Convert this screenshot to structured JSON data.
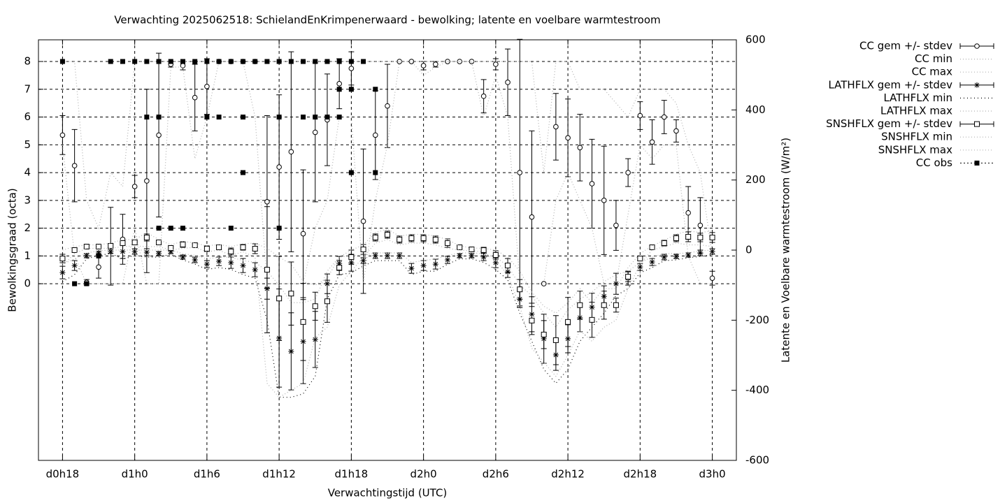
{
  "chart_data": {
    "type": "errorbar",
    "title": "Verwachting 2025062518: SchielandEnKrimpenerwaard - bewolking; latente en voelbare warmtestroom",
    "xlabel": "Verwachtingstijd (UTC)",
    "ylabel": "Bewolkingsgraad (octa)",
    "y2label": "Latente en Voelbare warmtestroom (W/m²)",
    "grid": true,
    "legend": "right",
    "xlim": [
      16,
      74
    ],
    "xticks": [
      {
        "value": 18,
        "label": "d0h18"
      },
      {
        "value": 24,
        "label": "d1h0"
      },
      {
        "value": 30,
        "label": "d1h6"
      },
      {
        "value": 36,
        "label": "d1h12"
      },
      {
        "value": 42,
        "label": "d1h18"
      },
      {
        "value": 48,
        "label": "d2h0"
      },
      {
        "value": 54,
        "label": "d2h6"
      },
      {
        "value": 60,
        "label": "d2h12"
      },
      {
        "value": 66,
        "label": "d2h18"
      },
      {
        "value": 72,
        "label": "d3h0"
      }
    ],
    "ylim": [
      -6.36,
      8.78
    ],
    "yticks": [
      0,
      1,
      2,
      3,
      4,
      5,
      6,
      7,
      8
    ],
    "y2lim": [
      -600,
      600
    ],
    "y2ticks": [
      -600,
      -400,
      -200,
      0,
      200,
      400,
      600
    ],
    "x": [
      18,
      19,
      20,
      21,
      22,
      23,
      24,
      25,
      26,
      27,
      28,
      29,
      30,
      31,
      32,
      33,
      34,
      35,
      36,
      37,
      38,
      39,
      40,
      41,
      42,
      43,
      44,
      45,
      46,
      47,
      48,
      49,
      50,
      51,
      52,
      53,
      54,
      55,
      56,
      57,
      58,
      59,
      60,
      61,
      62,
      63,
      64,
      65,
      66,
      67,
      68,
      69,
      70,
      71,
      72
    ],
    "series": [
      {
        "name": "CC gem +/- stdev",
        "kind": "errorbar",
        "marker": "circle",
        "color": "#000000",
        "axis": "y",
        "values": [
          5.35,
          4.25,
          0.05,
          0.6,
          1.35,
          1.6,
          3.5,
          3.7,
          5.35,
          7.9,
          7.85,
          6.7,
          7.1,
          8,
          8,
          8,
          8,
          2.95,
          4.2,
          4.75,
          1.8,
          5.45,
          5.9,
          7.2,
          7.75,
          2.25,
          5.35,
          6.4,
          8,
          8,
          7.85,
          7.9,
          8,
          8,
          8,
          6.75,
          7.9,
          7.25,
          4.0,
          2.4,
          0,
          5.65,
          5.25,
          4.9,
          3.6,
          3.0,
          2.1,
          4.0,
          6.05,
          5.1,
          6.0,
          5.5,
          2.55,
          2.1,
          0.2
        ],
        "stdev": [
          0.7,
          1.3,
          0.1,
          0.4,
          1.4,
          0.9,
          0.4,
          3.3,
          2.95,
          0.1,
          0.15,
          1.2,
          1.0,
          0,
          0,
          0,
          0,
          3.1,
          2.6,
          3.6,
          2.3,
          2.5,
          1.65,
          0.9,
          0.6,
          2.6,
          1.6,
          1.5,
          0,
          0,
          0.15,
          0.1,
          0,
          0,
          0,
          0.6,
          0.2,
          1.2,
          4.8,
          3.1,
          0,
          1.2,
          1.4,
          1.2,
          1.6,
          1.95,
          0.9,
          0.5,
          0.5,
          0.8,
          0.6,
          0.4,
          0.95,
          1.0,
          0.25
        ]
      },
      {
        "name": "CC min",
        "kind": "line",
        "color": "#b0b0b0",
        "dash": "1,3",
        "axis": "y",
        "values": [
          5,
          1,
          0,
          0,
          0,
          0,
          2,
          0,
          0,
          7.8,
          7.8,
          4.5,
          6,
          8,
          8,
          8,
          6,
          0,
          0,
          0,
          0,
          2,
          3,
          6,
          6,
          0,
          3,
          5,
          8,
          8,
          7.5,
          7.8,
          8,
          8,
          8,
          6,
          7.5,
          6,
          0,
          0,
          0,
          3,
          4,
          3,
          2,
          0,
          0,
          2.5,
          5,
          4.5,
          5,
          5,
          1,
          0,
          0
        ]
      },
      {
        "name": "CC max",
        "kind": "line",
        "color": "#b0b0b0",
        "dash": "1,3",
        "axis": "y",
        "values": [
          8,
          8,
          3,
          2,
          4,
          3.5,
          8,
          8,
          8,
          8,
          8,
          8,
          8,
          8,
          8,
          8,
          8,
          8,
          8,
          8,
          8,
          8,
          8,
          8,
          8,
          8,
          8,
          8,
          8,
          8,
          8,
          8,
          8,
          8,
          8,
          8,
          8,
          8,
          8,
          8,
          4,
          8,
          8,
          7,
          7,
          7,
          6.5,
          6,
          7,
          7,
          7,
          6.5,
          5,
          4,
          1
        ]
      },
      {
        "name": "LATHFLX gem +/- stdev",
        "kind": "errorbar",
        "marker": "star",
        "color": "#000000",
        "axis": "y2",
        "values": [
          -64,
          -44,
          -16,
          -8,
          -4,
          -4,
          -4,
          -6,
          -10,
          -4,
          -20,
          -28,
          -40,
          -32,
          -36,
          -44,
          -56,
          -110,
          -251,
          -289,
          -261,
          -255,
          -96,
          -38,
          -36,
          -30,
          -16,
          -16,
          -16,
          -52,
          -44,
          -40,
          -28,
          -16,
          -16,
          -20,
          -36,
          -62,
          -140,
          -183,
          -253,
          -299,
          -253,
          -193,
          -163,
          -132,
          -96,
          -80,
          -48,
          -34,
          -20,
          -18,
          -14,
          -8,
          -4
        ],
        "stdev": [
          18,
          14,
          6,
          5,
          5,
          20,
          8,
          10,
          6,
          6,
          6,
          8,
          10,
          12,
          16,
          20,
          20,
          30,
          140,
          110,
          120,
          80,
          28,
          20,
          24,
          8,
          8,
          8,
          8,
          14,
          14,
          14,
          10,
          6,
          6,
          10,
          14,
          16,
          24,
          50,
          70,
          44,
          40,
          40,
          40,
          30,
          30,
          20,
          10,
          10,
          8,
          6,
          6,
          8,
          8
        ]
      },
      {
        "name": "LATHFLX min",
        "kind": "line",
        "color": "#000000",
        "dash": "1,4",
        "axis": "y2",
        "values": [
          -90,
          -70,
          -25,
          -15,
          -10,
          -25,
          -15,
          -20,
          -20,
          -12,
          -28,
          -40,
          -55,
          -50,
          -55,
          -70,
          -80,
          -200,
          -420,
          -420,
          -410,
          -360,
          -140,
          -70,
          -65,
          -45,
          -30,
          -30,
          -30,
          -70,
          -60,
          -60,
          -40,
          -25,
          -25,
          -35,
          -55,
          -85,
          -180,
          -260,
          -340,
          -380,
          -340,
          -260,
          -220,
          -180,
          -130,
          -110,
          -65,
          -50,
          -30,
          -28,
          -22,
          -18,
          -14
        ]
      },
      {
        "name": "LATHFLX max",
        "kind": "line",
        "color": "#b0b0b0",
        "dash": "1,3",
        "axis": "y2",
        "values": [
          -40,
          -25,
          -8,
          -2,
          0,
          0,
          0,
          0,
          0,
          0,
          -10,
          -15,
          -25,
          -20,
          -20,
          -30,
          -35,
          -60,
          -100,
          -150,
          -150,
          -140,
          -60,
          -20,
          -15,
          -15,
          -8,
          -8,
          -8,
          -35,
          -30,
          -25,
          -15,
          -8,
          -8,
          -10,
          -20,
          -45,
          -100,
          -130,
          -180,
          -220,
          -170,
          -140,
          -120,
          -90,
          -70,
          -60,
          -35,
          -20,
          -10,
          -10,
          -8,
          -2,
          0
        ]
      },
      {
        "name": "SNSHFLX gem +/- stdev",
        "kind": "errorbar",
        "marker": "square",
        "color": "#000000",
        "axis": "y2",
        "values": [
          -24,
          0,
          10,
          10,
          12,
          20,
          22,
          36,
          22,
          6,
          16,
          14,
          4,
          8,
          -4,
          8,
          4,
          -56,
          -138,
          -124,
          -205,
          -160,
          -146,
          -50,
          -20,
          2,
          36,
          44,
          30,
          34,
          34,
          30,
          20,
          8,
          2,
          0,
          -14,
          -44,
          -112,
          -201,
          -241,
          -257,
          -205,
          -157,
          -199,
          -157,
          -157,
          -76,
          -24,
          8,
          20,
          34,
          38,
          36,
          36
        ],
        "stdev": [
          12,
          6,
          4,
          4,
          6,
          6,
          6,
          10,
          6,
          6,
          8,
          4,
          8,
          6,
          10,
          8,
          14,
          180,
          120,
          90,
          110,
          40,
          60,
          20,
          20,
          14,
          10,
          10,
          10,
          10,
          10,
          10,
          12,
          4,
          4,
          8,
          12,
          20,
          28,
          40,
          40,
          70,
          70,
          40,
          50,
          40,
          20,
          14,
          6,
          4,
          8,
          10,
          14,
          12,
          14
        ]
      },
      {
        "name": "SNSHFLX min",
        "kind": "line",
        "color": "#b0b0b0",
        "dash": "1,3",
        "axis": "y2",
        "values": [
          -45,
          -10,
          5,
          5,
          5,
          10,
          12,
          10,
          10,
          0,
          5,
          8,
          -5,
          0,
          -15,
          -5,
          -20,
          -380,
          -420,
          -400,
          -380,
          -250,
          -220,
          -100,
          -60,
          -20,
          20,
          30,
          15,
          20,
          20,
          15,
          5,
          0,
          -2,
          -5,
          -30,
          -70,
          -160,
          -280,
          -320,
          -360,
          -300,
          -230,
          -260,
          -220,
          -200,
          -110,
          -40,
          0,
          10,
          20,
          15,
          15,
          10
        ]
      },
      {
        "name": "SNSHFLX max",
        "kind": "line",
        "color": "#b0b0b0",
        "dash": "1,3",
        "axis": "y2",
        "values": [
          0,
          10,
          15,
          15,
          20,
          30,
          30,
          50,
          30,
          15,
          25,
          20,
          12,
          16,
          10,
          18,
          20,
          5,
          -20,
          -40,
          -90,
          -100,
          -80,
          -20,
          0,
          15,
          50,
          60,
          40,
          45,
          45,
          40,
          30,
          12,
          6,
          5,
          0,
          -20,
          -60,
          -120,
          -160,
          -180,
          -150,
          -110,
          -150,
          -110,
          -110,
          -50,
          -10,
          12,
          28,
          45,
          55,
          50,
          55
        ]
      },
      {
        "name": "CC obs",
        "kind": "points",
        "marker": "filled-square",
        "color": "#000000",
        "dash": "2,3",
        "axis": "y",
        "x": [
          18,
          19,
          20,
          21,
          22,
          23,
          24,
          25,
          25,
          26,
          26,
          26,
          27,
          27,
          28,
          28,
          29,
          30,
          30,
          31,
          31,
          32,
          32,
          33,
          33,
          33,
          34,
          35,
          36,
          36,
          36,
          37,
          38,
          38,
          39,
          39,
          40,
          40,
          41,
          41,
          41,
          42,
          42,
          42,
          43,
          44,
          44
        ],
        "values": [
          8,
          0,
          0,
          1,
          8,
          8,
          8,
          8,
          6,
          8,
          6,
          2,
          8,
          2,
          8,
          2,
          8,
          8,
          6,
          8,
          6,
          8,
          2,
          8,
          6,
          4,
          8,
          8,
          8,
          6,
          2,
          8,
          8,
          6,
          8,
          6,
          8,
          6,
          8,
          7,
          6,
          8,
          7,
          4,
          8,
          7,
          4
        ]
      }
    ]
  }
}
